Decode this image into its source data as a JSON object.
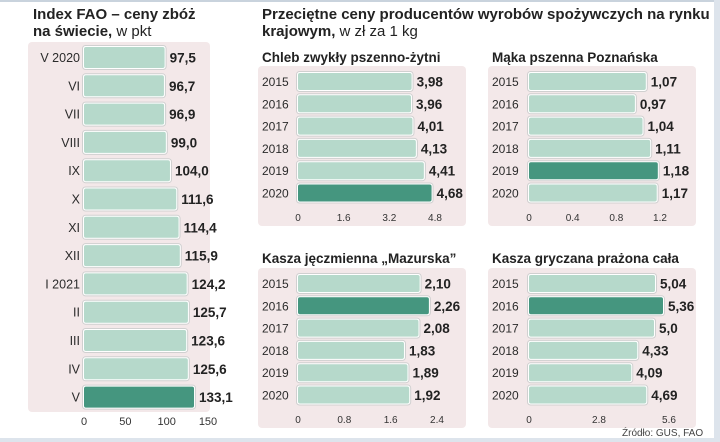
{
  "titles": {
    "fao_line1": "Index FAO – ceny zbóż",
    "fao_line2": "na świecie,",
    "fao_unit": " w pkt",
    "main_line1": "Przeciętne ceny producentów wyrobów spożywczych na rynku",
    "main_line2": "krajowym,",
    "main_unit": " w zł za 1 kg"
  },
  "source": "Źródło: GUS, FAO",
  "colors": {
    "bar": "#b6d9cb",
    "highlight": "#45967f",
    "background_panel": "#f3e8e9"
  },
  "chart_data": [
    {
      "id": "fao",
      "type": "bar",
      "orientation": "horizontal",
      "title": "Index FAO – ceny zbóż na świecie, w pkt",
      "categories": [
        "V 2020",
        "VI",
        "VII",
        "VIII",
        "IX",
        "X",
        "XI",
        "XII",
        "I 2021",
        "II",
        "III",
        "IV",
        "V"
      ],
      "values": [
        97.5,
        96.7,
        96.9,
        99.0,
        104.0,
        111.6,
        114.4,
        115.9,
        124.2,
        125.7,
        123.6,
        125.6,
        133.1
      ],
      "value_labels": [
        "97,5",
        "96,7",
        "96,9",
        "99,0",
        "104,0",
        "111,6",
        "114,4",
        "115,9",
        "124,2",
        "125,7",
        "123,6",
        "125,6",
        "133,1"
      ],
      "highlight": "V",
      "xlim": [
        0,
        150
      ],
      "ticks": [
        "0",
        "50",
        "100",
        "150"
      ]
    },
    {
      "id": "chleb",
      "type": "bar",
      "orientation": "horizontal",
      "title": "Chleb zwykły pszenno-żytni",
      "categories": [
        "2015",
        "2016",
        "2017",
        "2018",
        "2019",
        "2020"
      ],
      "values": [
        3.98,
        3.96,
        4.01,
        4.13,
        4.41,
        4.68
      ],
      "value_labels": [
        "3,98",
        "3,96",
        "4,01",
        "4,13",
        "4,41",
        "4,68"
      ],
      "highlight": "2020",
      "xlim": [
        0,
        4.8
      ],
      "ticks": [
        "0",
        "1.6",
        "3.2",
        "4.8"
      ]
    },
    {
      "id": "maka",
      "type": "bar",
      "orientation": "horizontal",
      "title": "Mąka pszenna Poznańska",
      "categories": [
        "2015",
        "2016",
        "2017",
        "2018",
        "2019",
        "2020"
      ],
      "values": [
        1.07,
        0.97,
        1.04,
        1.11,
        1.18,
        1.17
      ],
      "value_labels": [
        "1,07",
        "0,97",
        "1,04",
        "1,11",
        "1,18",
        "1,17"
      ],
      "highlight": "2019",
      "xlim": [
        0,
        1.2
      ],
      "ticks": [
        "0",
        "0.4",
        "0.8",
        "1.2"
      ]
    },
    {
      "id": "kasza_j",
      "type": "bar",
      "orientation": "horizontal",
      "title": "Kasza jęczmienna „Mazurska”",
      "categories": [
        "2015",
        "2016",
        "2017",
        "2018",
        "2019",
        "2020"
      ],
      "values": [
        2.1,
        2.26,
        2.08,
        1.83,
        1.89,
        1.92
      ],
      "value_labels": [
        "2,10",
        "2,26",
        "2,08",
        "1,83",
        "1,89",
        "1,92"
      ],
      "highlight": "2016",
      "xlim": [
        0,
        2.4
      ],
      "ticks": [
        "0",
        "0.8",
        "1.6",
        "2.4"
      ]
    },
    {
      "id": "kasza_g",
      "type": "bar",
      "orientation": "horizontal",
      "title": "Kasza gryczana prażona cała",
      "categories": [
        "2015",
        "2016",
        "2017",
        "2018",
        "2019",
        "2020"
      ],
      "values": [
        5.04,
        5.36,
        5.0,
        4.33,
        4.09,
        4.69
      ],
      "value_labels": [
        "5,04",
        "5,36",
        "5,0",
        "4,33",
        "4,09",
        "4,69"
      ],
      "highlight": "2016",
      "xlim": [
        0,
        5.6
      ],
      "ticks": [
        "0",
        "2.8",
        "5.6"
      ]
    }
  ]
}
